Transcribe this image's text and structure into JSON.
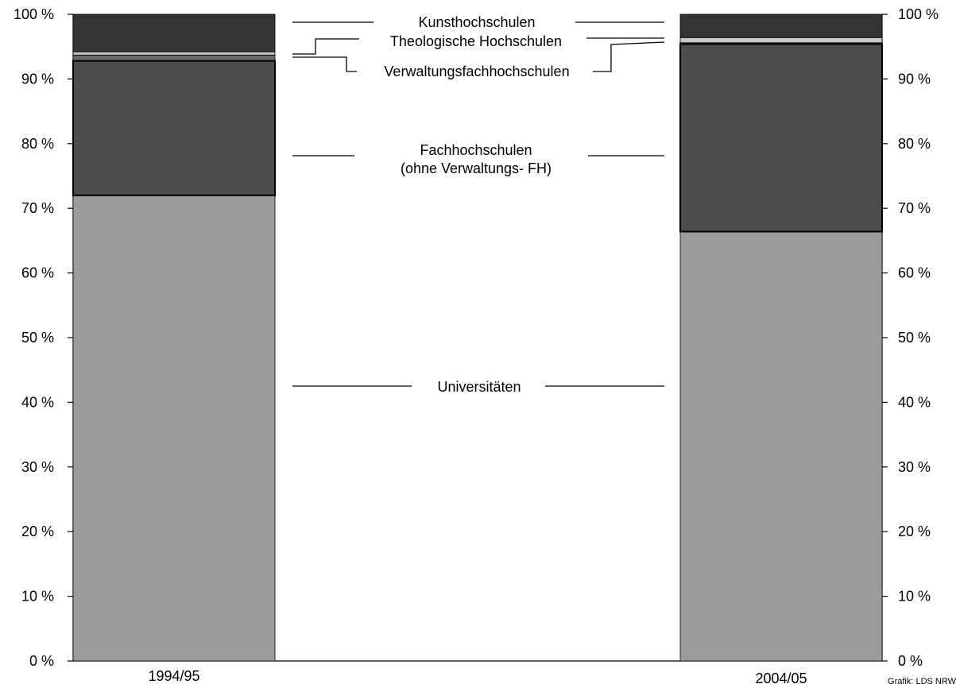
{
  "chart_data": {
    "type": "bar",
    "stacked": true,
    "categories": [
      "1994/95",
      "2004/05"
    ],
    "series": [
      {
        "name": "Universitäten",
        "values": [
          72.0,
          66.4
        ],
        "color": "#9b9b9b"
      },
      {
        "name": "Fachhochschulen (ohne Verwaltungs- FH)",
        "values": [
          20.8,
          29.0
        ],
        "color": "#4d4d4d"
      },
      {
        "name": "Verwaltungsfachhochschulen",
        "values": [
          0.9,
          0.2
        ],
        "color": "#6a6a6a"
      },
      {
        "name": "Theologische Hochschulen",
        "values": [
          0.5,
          0.8
        ],
        "color": "#c8c8c8"
      },
      {
        "name": "Kunsthochschulen",
        "values": [
          5.8,
          3.6
        ],
        "color": "#333333"
      }
    ],
    "segment_labels": {
      "kunst": "Kunsthochschulen",
      "theologie": "Theologische Hochschulen",
      "verwaltung": "Verwaltungsfachhochschulen",
      "fh_line1": "Fachhochschulen",
      "fh_line2": "(ohne Verwaltungs- FH)",
      "uni": "Universitäten"
    },
    "yticks": [
      "0 %",
      "10 %",
      "20 %",
      "30 %",
      "40 %",
      "50 %",
      "60 %",
      "70 %",
      "80 %",
      "90 %",
      "100 %"
    ],
    "ylim": [
      0,
      100
    ],
    "legend": "inline-between-bars",
    "grid": false,
    "title": "",
    "xlabel": "",
    "ylabel": ""
  },
  "credit": "Grafik: LDS NRW"
}
